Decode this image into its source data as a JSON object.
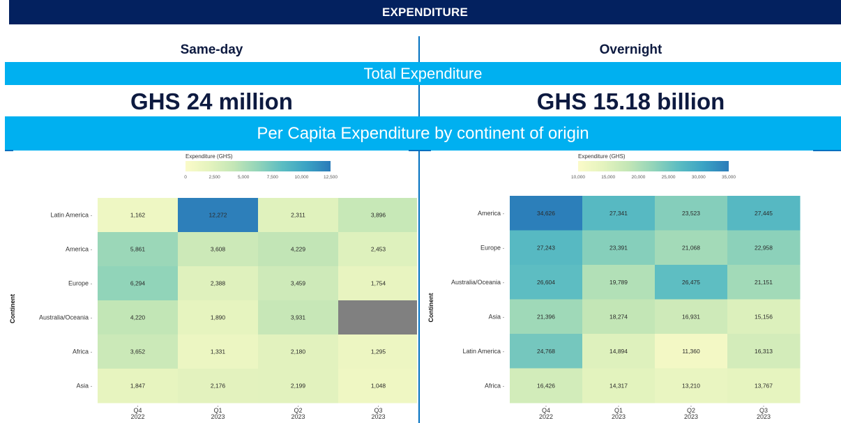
{
  "header": {
    "title": "EXPENDITURE"
  },
  "columns": {
    "left": "Same-day",
    "right": "Overnight"
  },
  "sections": {
    "total": "Total Expenditure",
    "per_capita": "Per Capita Expenditure by continent of origin"
  },
  "totals": {
    "same_day": "GHS 24 million",
    "overnight": "GHS 15.18 billion"
  },
  "chart_data": [
    {
      "type": "heatmap",
      "title": "Same-day",
      "xlabel": "",
      "ylabel": "Continent",
      "legend_title": "Expenditure (GHS)",
      "legend_ticks": [
        "0",
        "2,500",
        "5,000",
        "7,500",
        "10,000",
        "12,500"
      ],
      "legend_tick_values": [
        0,
        2500,
        5000,
        7500,
        10000,
        12500
      ],
      "color_range": [
        0,
        12500
      ],
      "legend_position": "top",
      "x": [
        "Q4\n2022",
        "Q1\n2023",
        "Q2\n2023",
        "Q3\n2023"
      ],
      "x_labels": [
        [
          "Q4",
          "2022"
        ],
        [
          "Q1",
          "2023"
        ],
        [
          "Q2",
          "2023"
        ],
        [
          "Q3",
          "2023"
        ]
      ],
      "y": [
        "Latin America",
        "America",
        "Europe",
        "Australia/Oceania",
        "Africa",
        "Asia"
      ],
      "values": [
        [
          1162,
          12272,
          2311,
          3896
        ],
        [
          5861,
          3608,
          4229,
          2453
        ],
        [
          6294,
          2388,
          3459,
          1754
        ],
        [
          4220,
          1890,
          3931,
          null
        ],
        [
          3652,
          1331,
          2180,
          1295
        ],
        [
          1847,
          2176,
          2199,
          1048
        ]
      ],
      "labels": [
        [
          "1,162",
          "12,272",
          "2,311",
          "3,896"
        ],
        [
          "5,861",
          "3,608",
          "4,229",
          "2,453"
        ],
        [
          "6,294",
          "2,388",
          "3,459",
          "1,754"
        ],
        [
          "4,220",
          "1,890",
          "3,931",
          ""
        ],
        [
          "3,652",
          "1,331",
          "2,180",
          "1,295"
        ],
        [
          "1,847",
          "2,176",
          "2,199",
          "1,048"
        ]
      ],
      "missing_color": "#808080"
    },
    {
      "type": "heatmap",
      "title": "Overnight",
      "xlabel": "",
      "ylabel": "Continent",
      "legend_title": "Expenditure (GHS)",
      "legend_ticks": [
        "10,000",
        "15,000",
        "20,000",
        "25,000",
        "30,000",
        "35,000"
      ],
      "legend_tick_values": [
        10000,
        15000,
        20000,
        25000,
        30000,
        35000
      ],
      "color_range": [
        10000,
        35000
      ],
      "legend_position": "top",
      "x": [
        "Q4\n2022",
        "Q1\n2023",
        "Q2\n2023",
        "Q3\n2023"
      ],
      "x_labels": [
        [
          "Q4",
          "2022"
        ],
        [
          "Q1",
          "2023"
        ],
        [
          "Q2",
          "2023"
        ],
        [
          "Q3",
          "2023"
        ]
      ],
      "y": [
        "America",
        "Europe",
        "Australia/Oceania",
        "Asia",
        "Latin America",
        "Africa"
      ],
      "values": [
        [
          34626,
          27341,
          23523,
          27445
        ],
        [
          27243,
          23391,
          21068,
          22958
        ],
        [
          26604,
          19789,
          26475,
          21151
        ],
        [
          21396,
          18274,
          16931,
          15156
        ],
        [
          24768,
          14894,
          11360,
          16313
        ],
        [
          16426,
          14317,
          13210,
          13767
        ]
      ],
      "labels": [
        [
          "34,626",
          "27,341",
          "23,523",
          "27,445"
        ],
        [
          "27,243",
          "23,391",
          "21,068",
          "22,958"
        ],
        [
          "26,604",
          "19,789",
          "26,475",
          "21,151"
        ],
        [
          "21,396",
          "18,274",
          "16,931",
          "15,156"
        ],
        [
          "24,768",
          "14,894",
          "11,360",
          "16,313"
        ],
        [
          "16,426",
          "14,317",
          "13,210",
          "13,767"
        ]
      ],
      "missing_color": "#808080"
    }
  ],
  "colors": {
    "title_bg": "#03215f",
    "section_bg": "#00b0f0",
    "divider": "#0070c0",
    "scale": [
      "#fbfbc9",
      "#e4f3be",
      "#c3e6b6",
      "#92d4b9",
      "#5cbdc2",
      "#3ba3c4",
      "#2b7bb9"
    ]
  }
}
